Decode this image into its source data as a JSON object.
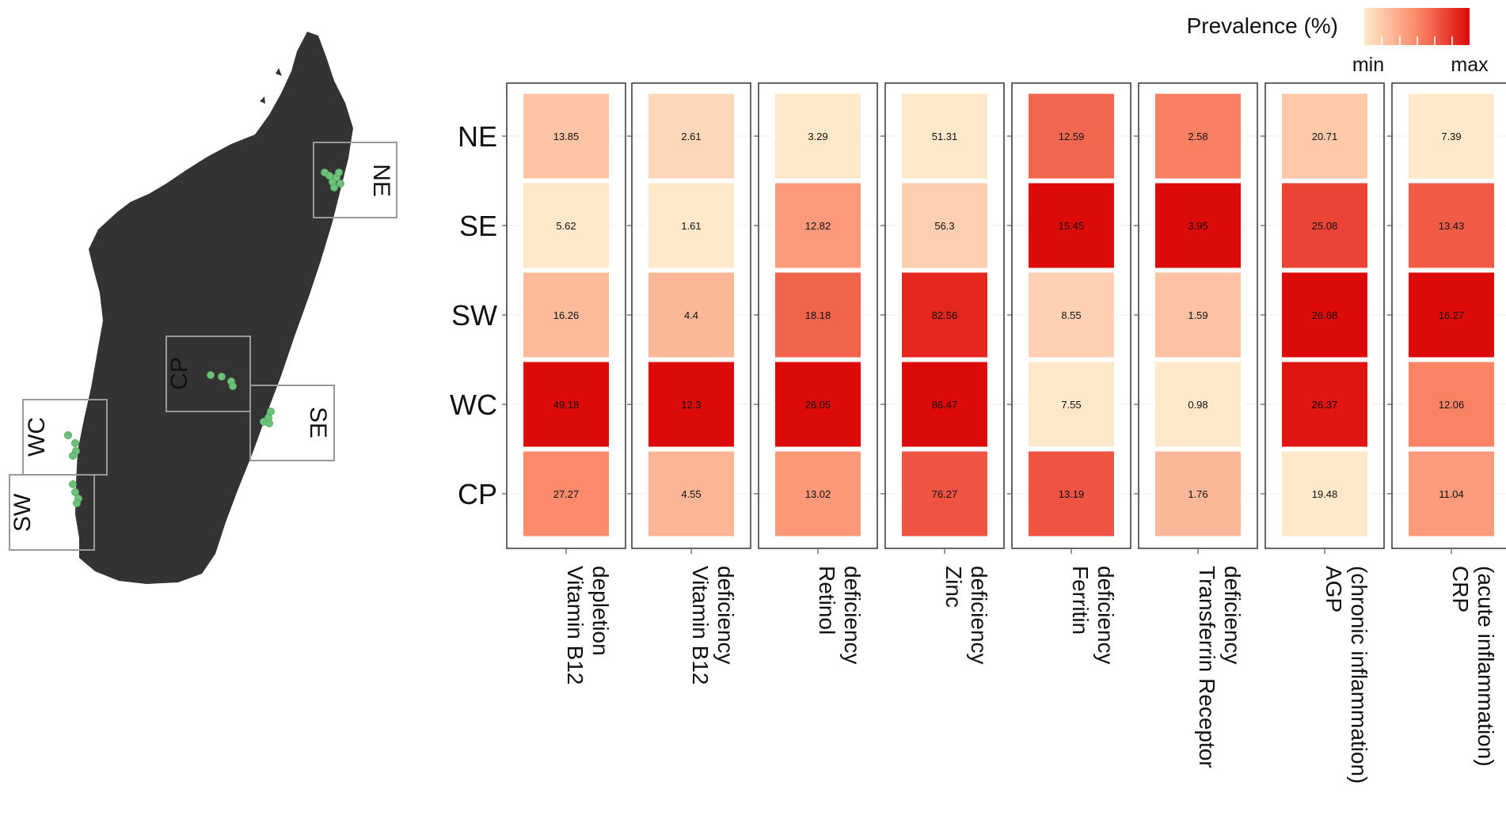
{
  "chart_data": {
    "type": "heatmap",
    "title": "",
    "legend": {
      "title": "Prevalence (%)",
      "min_label": "min",
      "max_label": "max",
      "colors": [
        "#fde9ca",
        "#fc8a6a",
        "#dd0a0a"
      ]
    },
    "regions": [
      "NE",
      "SE",
      "SW",
      "WC",
      "CP"
    ],
    "map_regions": [
      "NE",
      "CP",
      "SE",
      "WC",
      "SW"
    ],
    "indicators": [
      {
        "line1": "Vitamin B12",
        "line2": "depletion",
        "values": [
          13.85,
          5.62,
          16.26,
          49.18,
          27.27
        ]
      },
      {
        "line1": "Vitamin B12",
        "line2": "deficiency",
        "values": [
          2.61,
          1.61,
          4.4,
          12.3,
          4.55
        ]
      },
      {
        "line1": "Retinol",
        "line2": "deficiency",
        "values": [
          3.29,
          12.82,
          18.18,
          26.05,
          13.02
        ]
      },
      {
        "line1": "Zinc",
        "line2": "deficiency",
        "values": [
          51.31,
          56.3,
          82.56,
          86.47,
          76.27
        ]
      },
      {
        "line1": "Ferritin",
        "line2": "deficiency",
        "values": [
          12.59,
          15.45,
          8.55,
          7.55,
          13.19
        ]
      },
      {
        "line1": "Transferrin Receptor",
        "line2": "deficiency",
        "values": [
          2.58,
          3.95,
          1.59,
          0.98,
          1.76
        ]
      },
      {
        "line1": "AGP",
        "line2": "(chronic inflammation)",
        "values": [
          20.71,
          25.08,
          26.68,
          26.37,
          19.48
        ]
      },
      {
        "line1": "CRP",
        "line2": "(acute inflammation)",
        "values": [
          7.39,
          13.43,
          16.27,
          12.06,
          11.04
        ]
      }
    ]
  }
}
